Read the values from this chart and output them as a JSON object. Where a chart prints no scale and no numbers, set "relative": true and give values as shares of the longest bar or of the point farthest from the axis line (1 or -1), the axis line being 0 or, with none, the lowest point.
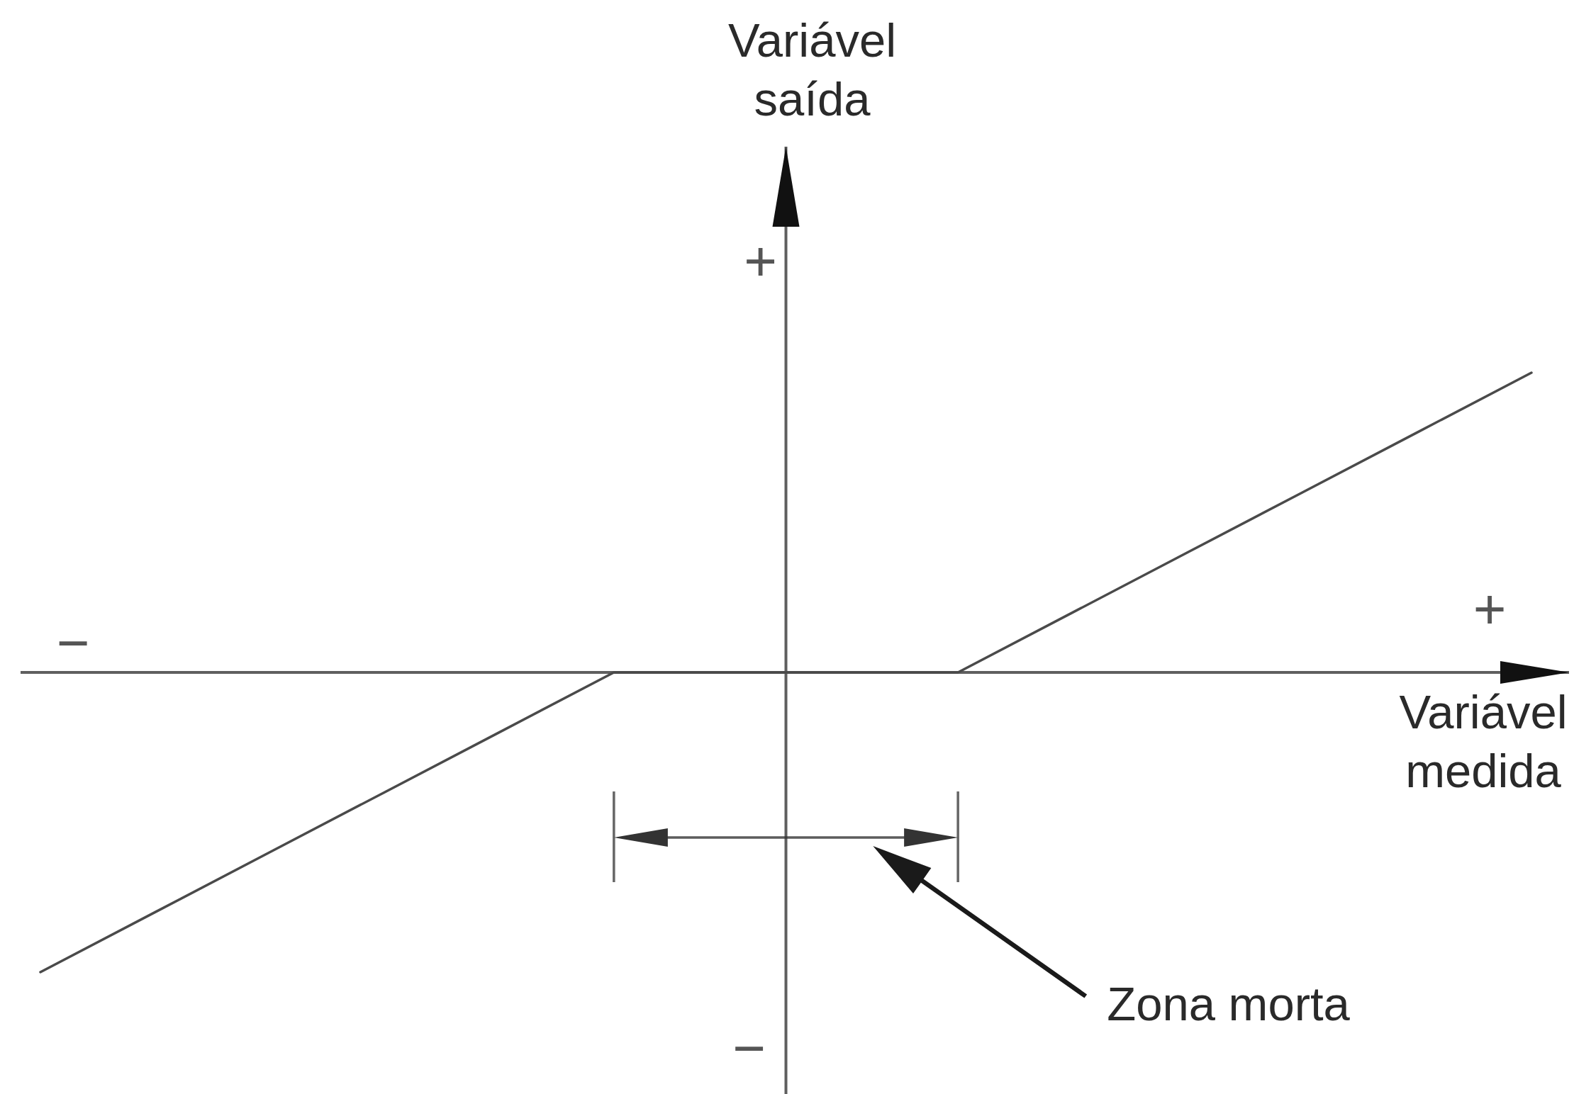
{
  "chart_data": {
    "type": "line",
    "relative": true,
    "xlabel": "Variável medida",
    "categories": [
      null,
      null,
      null,
      null,
      null,
      null,
      null,
      null,
      null,
      null,
      null,
      null,
      null,
      null
    ],
    "values": [
      -1,
      -0.8,
      -0.6,
      -0.4,
      -0.2,
      0,
      0,
      0,
      0,
      0.2,
      0.4,
      0.6,
      0.8,
      1
    ],
    "color": "#4a4a4a",
    "annotations": [
      "Variável saída",
      "+",
      "−",
      "+",
      "−",
      "Zona morta"
    ]
  }
}
